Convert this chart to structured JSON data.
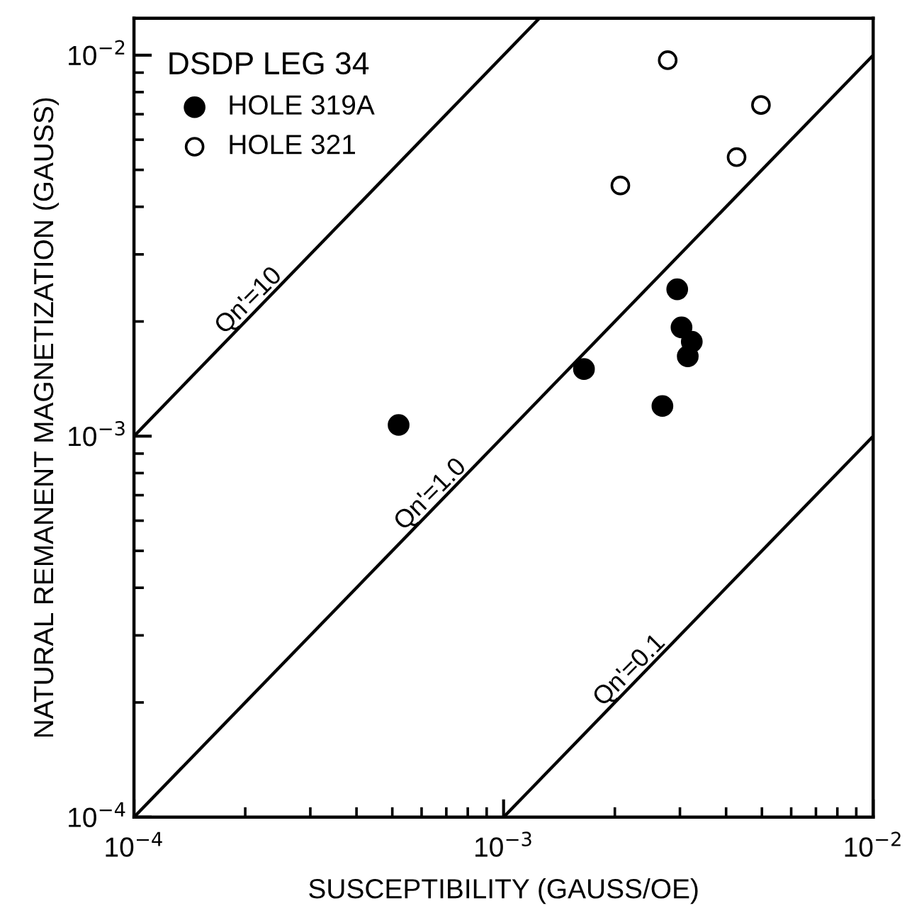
{
  "chart_data": {
    "type": "scatter",
    "xlabel": "SUSCEPTIBILITY (GAUSS/OE)",
    "ylabel": "NATURAL REMANENT MAGNETIZATION (GAUSS)",
    "legend_title": "DSDP LEG 34",
    "log": "xy",
    "grid": false,
    "legend": "top left",
    "xlim": [
      0.0001,
      0.01
    ],
    "ylim": [
      0.0001,
      0.0125
    ],
    "xticks": [
      {
        "value": 0.0001,
        "label": "10$^{−4}$"
      },
      {
        "value": 0.001,
        "label": "10$^{−3}$"
      },
      {
        "value": 0.01,
        "label": "10$^{−2}$"
      }
    ],
    "yticks": [
      {
        "value": 0.0001,
        "label": "10$^{−4}$"
      },
      {
        "value": 0.001,
        "label": "10$^{−3}$"
      },
      {
        "value": 0.01,
        "label": "10$^{−2}$"
      }
    ],
    "series": [
      {
        "name": "HOLE 319A",
        "marker": "circle",
        "color": "#000000",
        "x": [
          0.00052,
          0.00165,
          0.00295,
          0.00303,
          0.00323,
          0.00315,
          0.00269
        ],
        "values": [
          0.00107,
          0.0015,
          0.00243,
          0.00193,
          0.00177,
          0.00162,
          0.0012
        ]
      },
      {
        "name": "HOLE 321",
        "marker": "circle",
        "color": "#ffffff",
        "x": [
          0.00278,
          0.00497,
          0.00427,
          0.00207
        ],
        "values": [
          0.0097,
          0.0074,
          0.0054,
          0.00455
        ]
      },
      {
        "type": "line",
        "marker": "none",
        "color": "#000000",
        "x": [
          0.0001,
          0.00125
        ],
        "values": [
          0.001,
          0.0125
        ]
      },
      {
        "type": "line",
        "marker": "none",
        "color": "#000000",
        "x": [
          0.0001,
          0.01
        ],
        "values": [
          0.0001,
          0.01
        ]
      },
      {
        "type": "line",
        "marker": "none",
        "color": "#000000",
        "x": [
          0.001,
          0.01
        ],
        "values": [
          0.0001,
          0.001
        ]
      }
    ],
    "annotations": [
      {
        "text": "Qn'=10",
        "x": 0.00018,
        "y": 0.0018
      },
      {
        "text": "Qn'=1.0",
        "x": 0.00055,
        "y": 0.00055
      },
      {
        "text": "Qn'=0.1",
        "x": 0.0019,
        "y": 0.00019
      }
    ]
  }
}
